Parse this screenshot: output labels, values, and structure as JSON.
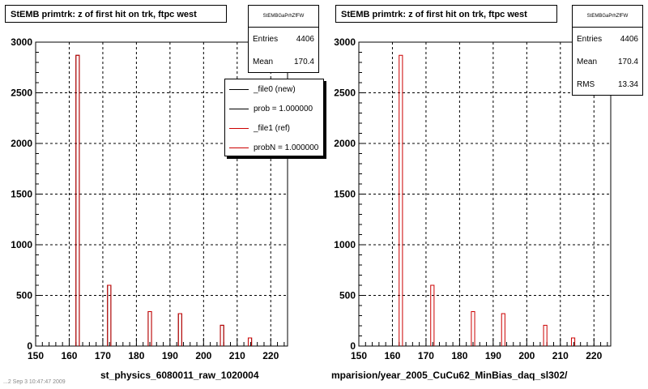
{
  "chart_data": [
    {
      "type": "bar",
      "title": "StEMB primtrk: z of first hit on trk, ftpc west",
      "xlim": [
        150,
        225
      ],
      "ylim": [
        0,
        3000
      ],
      "x_ticks": [
        150,
        160,
        170,
        180,
        190,
        200,
        210,
        220
      ],
      "y_ticks": [
        0,
        500,
        1000,
        1500,
        2000,
        2500,
        3000
      ],
      "grid": true,
      "series": [
        {
          "name": "_file0 (new)",
          "color": "#000000",
          "x": [
            162.5,
            171.9,
            184.0,
            193.0,
            205.5,
            213.8
          ],
          "values": [
            2870,
            600,
            340,
            320,
            205,
            80
          ]
        },
        {
          "name": "_file1 (ref)",
          "color": "#cc0000",
          "x": [
            162.5,
            171.9,
            184.0,
            193.0,
            205.5,
            213.8
          ],
          "values": [
            2870,
            600,
            340,
            320,
            205,
            80
          ]
        }
      ],
      "stats": {
        "name": "StEMBGaPrhZfFW",
        "rows": [
          {
            "label": "Entries",
            "value": "4406"
          },
          {
            "label": "Mean",
            "value": "170.4"
          }
        ]
      },
      "legend": {
        "placement": "top-right",
        "entries": [
          {
            "label": "_file0 (new)",
            "color": "#000000"
          },
          {
            "label": "prob = 1.000000",
            "color": "#000000"
          },
          {
            "label": "_file1 (ref)",
            "color": "#cc0000"
          },
          {
            "label": "probN = 1.000000",
            "color": "#cc0000"
          }
        ]
      },
      "footer": "st_physics_6080011_raw_1020004"
    },
    {
      "type": "bar",
      "title": "StEMB primtrk: z of first hit on trk, ftpc west",
      "xlim": [
        150,
        225
      ],
      "ylim": [
        0,
        3000
      ],
      "x_ticks": [
        150,
        160,
        170,
        180,
        190,
        200,
        210,
        220
      ],
      "y_ticks": [
        0,
        500,
        1000,
        1500,
        2000,
        2500,
        3000
      ],
      "grid": true,
      "series": [
        {
          "color": "#cc0000",
          "x": [
            162.5,
            171.9,
            184.0,
            193.0,
            205.5,
            213.8
          ],
          "values": [
            2870,
            600,
            340,
            320,
            205,
            80
          ]
        }
      ],
      "stats": {
        "name": "StEMBGaPrhZfFW",
        "rows": [
          {
            "label": "Entries",
            "value": "4406"
          },
          {
            "label": "Mean",
            "value": "170.4"
          },
          {
            "label": "RMS",
            "value": "13.34"
          }
        ]
      },
      "footer": "mparision/year_2005_CuCu62_MinBias_daq_sl302/"
    }
  ],
  "corner_note": "...2 Sep 3 10:47:47 2009"
}
